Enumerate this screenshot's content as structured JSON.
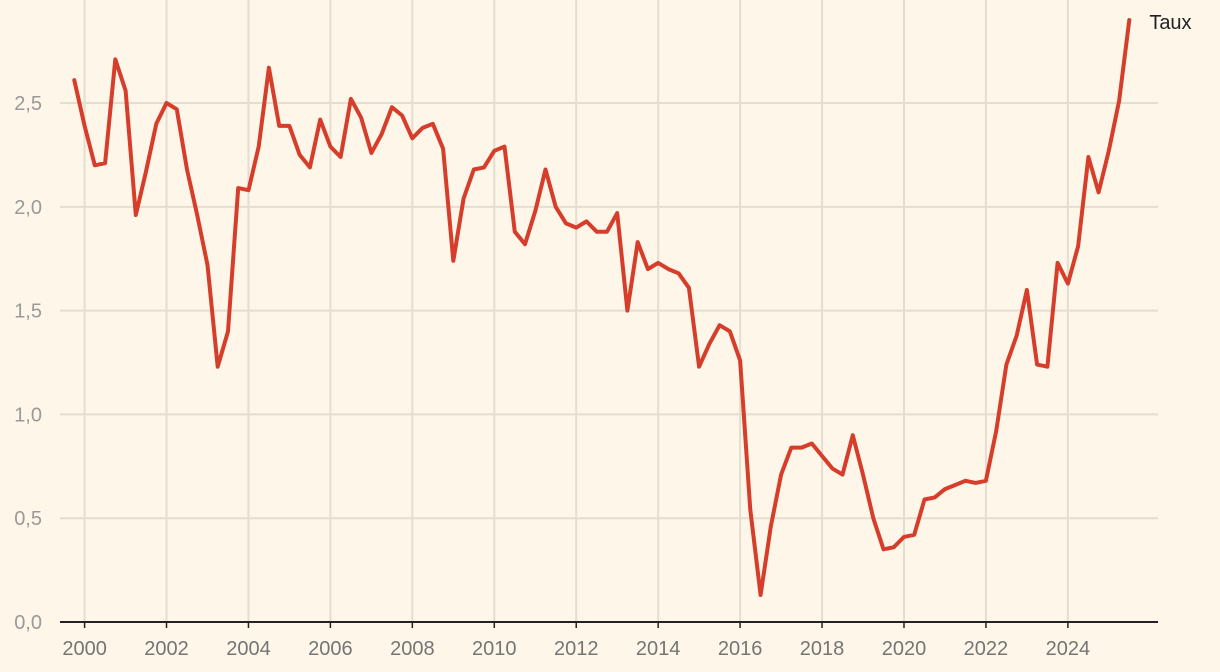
{
  "chart_data": {
    "type": "line",
    "title": "",
    "xlabel": "",
    "ylabel": "",
    "xlim": [
      1999.4,
      2026.2
    ],
    "ylim": [
      0,
      2.9
    ],
    "x_ticks": [
      2000,
      2002,
      2004,
      2006,
      2008,
      2010,
      2012,
      2014,
      2016,
      2018,
      2020,
      2022,
      2024
    ],
    "y_ticks": [
      0.0,
      0.5,
      1.0,
      1.5,
      2.0,
      2.5
    ],
    "y_tick_labels": [
      "0,0",
      "0,5",
      "1,0",
      "1,5",
      "2,0",
      "2,5"
    ],
    "grid": true,
    "colors": {
      "line": "#d63d2a",
      "grid": "#e4ddd0",
      "axis": "#222222",
      "background": "#fdf6e9"
    },
    "series": [
      {
        "name": "Taux",
        "label_position": "end-of-line",
        "x": [
          1999.75,
          2000.0,
          2000.25,
          2000.5,
          2000.75,
          2001.0,
          2001.25,
          2001.5,
          2001.75,
          2002.0,
          2002.25,
          2002.5,
          2002.75,
          2003.0,
          2003.25,
          2003.5,
          2003.75,
          2004.0,
          2004.25,
          2004.5,
          2004.75,
          2005.0,
          2005.25,
          2005.5,
          2005.75,
          2006.0,
          2006.25,
          2006.5,
          2006.75,
          2007.0,
          2007.25,
          2007.5,
          2007.75,
          2008.0,
          2008.25,
          2008.5,
          2008.75,
          2009.0,
          2009.25,
          2009.5,
          2009.75,
          2010.0,
          2010.25,
          2010.5,
          2010.75,
          2011.0,
          2011.25,
          2011.5,
          2011.75,
          2012.0,
          2012.25,
          2012.5,
          2012.75,
          2013.0,
          2013.25,
          2013.5,
          2013.75,
          2014.0,
          2014.25,
          2014.5,
          2014.75,
          2015.0,
          2015.25,
          2015.5,
          2015.75,
          2016.0,
          2016.25,
          2016.5,
          2016.75,
          2017.0,
          2017.25,
          2017.5,
          2017.75,
          2018.0,
          2018.25,
          2018.5,
          2018.75,
          2019.0,
          2019.25,
          2019.5,
          2019.75,
          2020.0,
          2020.25,
          2020.5,
          2020.75,
          2021.0,
          2021.25,
          2021.5,
          2021.75,
          2022.0,
          2022.25,
          2022.5,
          2022.75,
          2023.0,
          2023.25,
          2023.5,
          2023.75,
          2024.0,
          2024.25,
          2024.5,
          2024.75,
          2025.0,
          2025.25,
          2025.5
        ],
        "values": [
          2.61,
          2.39,
          2.2,
          2.21,
          2.71,
          2.56,
          1.96,
          2.17,
          2.4,
          2.5,
          2.47,
          2.18,
          1.96,
          1.72,
          1.23,
          1.4,
          2.09,
          2.08,
          2.29,
          2.67,
          2.39,
          2.39,
          2.25,
          2.19,
          2.42,
          2.29,
          2.24,
          2.52,
          2.43,
          2.26,
          2.35,
          2.48,
          2.44,
          2.33,
          2.38,
          2.4,
          2.28,
          1.74,
          2.04,
          2.18,
          2.19,
          2.27,
          2.29,
          1.88,
          1.82,
          1.98,
          2.18,
          2.0,
          1.92,
          1.9,
          1.93,
          1.88,
          1.88,
          1.97,
          1.5,
          1.83,
          1.7,
          1.73,
          1.7,
          1.68,
          1.61,
          1.23,
          1.34,
          1.43,
          1.4,
          1.26,
          0.54,
          0.13,
          0.46,
          0.71,
          0.84,
          0.84,
          0.86,
          0.8,
          0.74,
          0.71,
          0.9,
          0.71,
          0.5,
          0.35,
          0.36,
          0.41,
          0.42,
          0.59,
          0.6,
          0.64,
          0.66,
          0.68,
          0.67,
          0.68,
          0.92,
          1.24,
          1.38,
          1.6,
          1.24,
          1.23,
          1.73,
          1.63,
          1.81,
          2.24,
          2.07,
          2.27,
          2.51,
          2.9
        ]
      }
    ]
  }
}
